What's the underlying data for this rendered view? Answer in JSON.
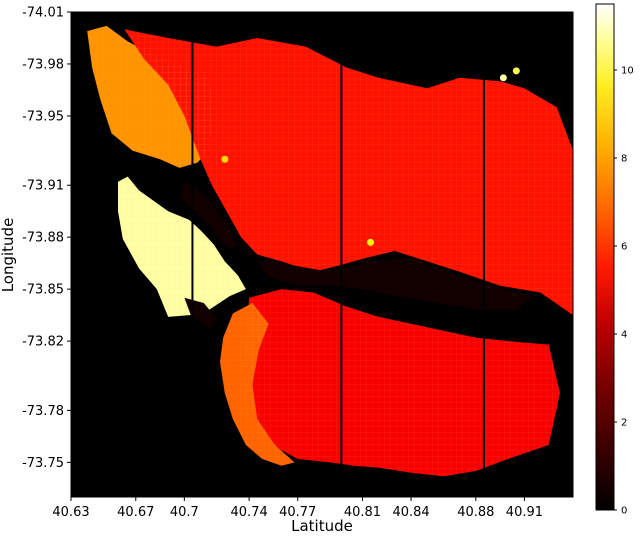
{
  "chart_data": {
    "type": "heatmap",
    "title": "",
    "xlabel": "Latitude",
    "ylabel": "Longitude",
    "x_ticks": [
      40.63,
      40.67,
      40.7,
      40.74,
      40.77,
      40.81,
      40.84,
      40.88,
      40.91
    ],
    "x_tick_labels": [
      "40.63",
      "40.67",
      "40.7",
      "40.74",
      "40.77",
      "40.81",
      "40.84",
      "40.88",
      "40.91"
    ],
    "y_ticks": [
      -74.01,
      -73.98,
      -73.95,
      -73.91,
      -73.88,
      -73.85,
      -73.82,
      -73.78,
      -73.75
    ],
    "y_tick_labels": [
      "-74.01",
      "-73.98",
      "-73.95",
      "-73.91",
      "-73.88",
      "-73.85",
      "-73.82",
      "-73.78",
      "-73.75"
    ],
    "xlim": [
      40.63,
      40.94
    ],
    "ylim": [
      -74.01,
      -73.73
    ],
    "y_inverted": true,
    "colormap": "hot",
    "colorbar": {
      "min": 0,
      "max": 11.5,
      "ticks": [
        0,
        2,
        4,
        6,
        8,
        10
      ],
      "tick_labels": [
        "0",
        "2",
        "4",
        "6",
        "8",
        "10"
      ]
    },
    "vertical_lines_x": [
      40.705,
      40.797,
      40.885
    ],
    "regions": [
      {
        "label": "",
        "intensity": 10.5,
        "polygon": [
          [
            40.659,
            -73.912
          ],
          [
            40.665,
            -73.915
          ],
          [
            40.672,
            -73.907
          ],
          [
            40.69,
            -73.895
          ],
          [
            40.703,
            -73.89
          ],
          [
            40.71,
            -73.884
          ],
          [
            40.718,
            -73.876
          ],
          [
            40.725,
            -73.866
          ],
          [
            40.733,
            -73.858
          ],
          [
            40.738,
            -73.85
          ],
          [
            40.728,
            -73.846
          ],
          [
            40.72,
            -73.841
          ],
          [
            40.712,
            -73.836
          ],
          [
            40.703,
            -73.835
          ],
          [
            40.69,
            -73.834
          ],
          [
            40.683,
            -73.85
          ],
          [
            40.672,
            -73.862
          ],
          [
            40.662,
            -73.879
          ],
          [
            40.659,
            -73.895
          ]
        ]
      },
      {
        "label": "",
        "intensity": 6.8,
        "polygon": [
          [
            40.64,
            -73.999
          ],
          [
            40.652,
            -74.002
          ],
          [
            40.665,
            -73.993
          ],
          [
            40.685,
            -73.983
          ],
          [
            40.7,
            -73.978
          ],
          [
            40.715,
            -73.972
          ],
          [
            40.718,
            -73.955
          ],
          [
            40.715,
            -73.93
          ],
          [
            40.708,
            -73.923
          ],
          [
            40.697,
            -73.92
          ],
          [
            40.685,
            -73.925
          ],
          [
            40.668,
            -73.93
          ],
          [
            40.655,
            -73.94
          ],
          [
            40.648,
            -73.96
          ],
          [
            40.643,
            -73.978
          ]
        ]
      },
      {
        "label": "",
        "intensity": 4.6,
        "polygon": [
          [
            40.663,
            -74.0
          ],
          [
            40.69,
            -73.995
          ],
          [
            40.72,
            -73.99
          ],
          [
            40.745,
            -73.995
          ],
          [
            40.775,
            -73.99
          ],
          [
            40.8,
            -73.978
          ],
          [
            40.82,
            -73.972
          ],
          [
            40.85,
            -73.966
          ],
          [
            40.87,
            -73.972
          ],
          [
            40.895,
            -73.97
          ],
          [
            40.91,
            -73.966
          ],
          [
            40.93,
            -73.955
          ],
          [
            40.94,
            -73.93
          ],
          [
            40.94,
            -73.835
          ],
          [
            40.92,
            -73.848
          ],
          [
            40.895,
            -73.852
          ],
          [
            40.87,
            -73.86
          ],
          [
            40.85,
            -73.866
          ],
          [
            40.83,
            -73.872
          ],
          [
            40.812,
            -73.868
          ],
          [
            40.797,
            -73.864
          ],
          [
            40.78,
            -73.86
          ],
          [
            40.76,
            -73.866
          ],
          [
            40.745,
            -73.87
          ],
          [
            40.735,
            -73.88
          ],
          [
            40.726,
            -73.895
          ],
          [
            40.717,
            -73.91
          ],
          [
            40.71,
            -73.925
          ],
          [
            40.7,
            -73.95
          ],
          [
            40.69,
            -73.968
          ],
          [
            40.675,
            -73.983
          ]
        ]
      },
      {
        "label": "",
        "intensity": 4.2,
        "polygon": [
          [
            40.74,
            -73.845
          ],
          [
            40.76,
            -73.85
          ],
          [
            40.78,
            -73.848
          ],
          [
            40.8,
            -73.84
          ],
          [
            40.82,
            -73.834
          ],
          [
            40.84,
            -73.83
          ],
          [
            40.86,
            -73.826
          ],
          [
            40.88,
            -73.822
          ],
          [
            40.9,
            -73.82
          ],
          [
            40.925,
            -73.818
          ],
          [
            40.932,
            -73.79
          ],
          [
            40.925,
            -73.76
          ],
          [
            40.9,
            -73.752
          ],
          [
            40.88,
            -73.745
          ],
          [
            40.86,
            -73.742
          ],
          [
            40.84,
            -73.744
          ],
          [
            40.82,
            -73.747
          ],
          [
            40.805,
            -73.748
          ],
          [
            40.79,
            -73.75
          ],
          [
            40.77,
            -73.752
          ],
          [
            40.76,
            -73.757
          ],
          [
            40.745,
            -73.767
          ],
          [
            40.74,
            -73.79
          ],
          [
            40.738,
            -73.815
          ]
        ]
      },
      {
        "label": "",
        "intensity": 6.0,
        "polygon": [
          [
            40.73,
            -73.836
          ],
          [
            40.742,
            -73.842
          ],
          [
            40.752,
            -73.83
          ],
          [
            40.746,
            -73.815
          ],
          [
            40.742,
            -73.795
          ],
          [
            40.745,
            -73.775
          ],
          [
            40.756,
            -73.76
          ],
          [
            40.768,
            -73.75
          ],
          [
            40.76,
            -73.748
          ],
          [
            40.748,
            -73.752
          ],
          [
            40.738,
            -73.76
          ],
          [
            40.73,
            -73.775
          ],
          [
            40.725,
            -73.79
          ],
          [
            40.722,
            -73.808
          ],
          [
            40.724,
            -73.822
          ]
        ]
      }
    ],
    "dark_patches": [
      {
        "label": "",
        "polygon": [
          [
            40.7,
            -73.912
          ],
          [
            40.712,
            -73.905
          ],
          [
            40.72,
            -73.895
          ],
          [
            40.728,
            -73.886
          ],
          [
            40.733,
            -73.875
          ],
          [
            40.727,
            -73.873
          ],
          [
            40.718,
            -73.884
          ],
          [
            40.708,
            -73.894
          ],
          [
            40.698,
            -73.903
          ]
        ]
      },
      {
        "label": "",
        "polygon": [
          [
            40.745,
            -73.867
          ],
          [
            40.765,
            -73.864
          ],
          [
            40.79,
            -73.86
          ],
          [
            40.815,
            -73.866
          ],
          [
            40.84,
            -73.868
          ],
          [
            40.862,
            -73.86
          ],
          [
            40.89,
            -73.852
          ],
          [
            40.915,
            -73.846
          ],
          [
            40.905,
            -73.838
          ],
          [
            40.88,
            -73.838
          ],
          [
            40.855,
            -73.842
          ],
          [
            40.83,
            -73.846
          ],
          [
            40.81,
            -73.85
          ],
          [
            40.79,
            -73.852
          ],
          [
            40.77,
            -73.852
          ],
          [
            40.752,
            -73.857
          ]
        ]
      },
      {
        "label": "",
        "polygon": [
          [
            40.7,
            -73.845
          ],
          [
            40.712,
            -73.842
          ],
          [
            40.72,
            -73.833
          ],
          [
            40.716,
            -73.827
          ],
          [
            40.704,
            -73.835
          ]
        ]
      }
    ],
    "hotspots": [
      {
        "label": "",
        "x": 40.897,
        "y": -73.972,
        "intensity": 10.5
      },
      {
        "label": "",
        "x": 40.905,
        "y": -73.976,
        "intensity": 9.5
      },
      {
        "label": "",
        "x": 40.815,
        "y": -73.877,
        "intensity": 8.5
      },
      {
        "label": "",
        "x": 40.725,
        "y": -73.925,
        "intensity": 8.0
      }
    ]
  }
}
